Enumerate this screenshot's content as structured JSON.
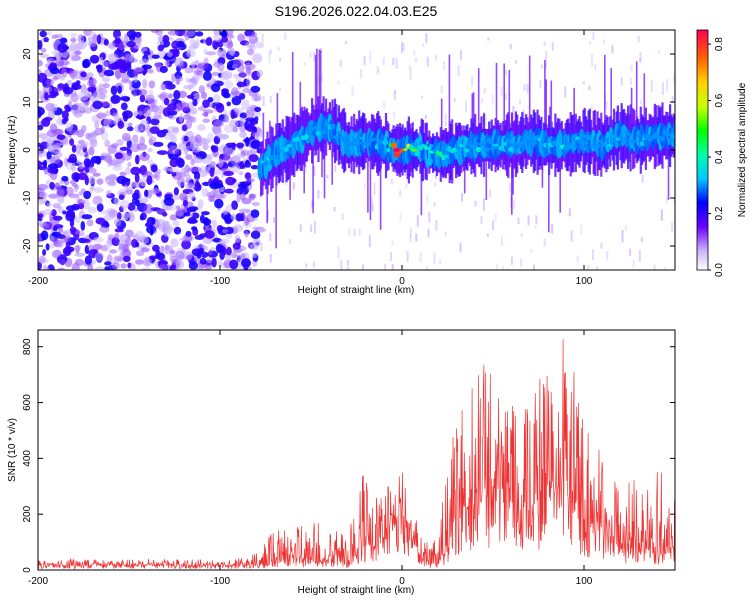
{
  "figure": {
    "title": "S196.2026.022.04.03.E25"
  },
  "colors": {
    "snr_line": "#ee3333",
    "axis": "#000000"
  },
  "chart_data": [
    {
      "type": "heatmap",
      "title": "",
      "xlabel": "Height of straight line (km)",
      "ylabel": "Frequency (Hz)",
      "xlim": [
        -200,
        150
      ],
      "ylim": [
        -25,
        25
      ],
      "xticks": [
        -200,
        -100,
        0,
        100
      ],
      "xtick_labels": [
        "-200",
        "-100",
        "0",
        "100"
      ],
      "yticks": [
        -20,
        -10,
        0,
        10,
        20
      ],
      "ytick_labels": [
        "-20",
        "-10",
        "0",
        "10",
        "20"
      ],
      "colorbar": {
        "label": "Normalized spectral amplitude",
        "range": [
          0,
          0.85
        ],
        "ticks": [
          0.0,
          0.2,
          0.4,
          0.6,
          0.8
        ],
        "tick_labels": [
          "0.0",
          "0.2",
          "0.4",
          "0.6",
          "0.8"
        ],
        "colormap": "rainbow"
      },
      "description_values": {
        "noise_region_x": [
          -200,
          -78
        ],
        "signal_start_x": -78,
        "ridge_points": [
          {
            "x": -78,
            "f": -4,
            "amp": 0.45
          },
          {
            "x": -70,
            "f": -1,
            "amp": 0.3
          },
          {
            "x": -60,
            "f": 1,
            "amp": 0.35
          },
          {
            "x": -50,
            "f": 4,
            "amp": 0.35
          },
          {
            "x": -40,
            "f": 5,
            "amp": 0.3
          },
          {
            "x": -30,
            "f": 1,
            "amp": 0.25
          },
          {
            "x": -20,
            "f": 2,
            "amp": 0.35
          },
          {
            "x": -10,
            "f": 1,
            "amp": 0.3
          },
          {
            "x": -3,
            "f": 0,
            "amp": 0.85
          },
          {
            "x": 10,
            "f": 0,
            "amp": 0.4
          },
          {
            "x": 20,
            "f": -1,
            "amp": 0.45
          },
          {
            "x": 30,
            "f": 0,
            "amp": 0.35
          },
          {
            "x": 40,
            "f": 1,
            "amp": 0.4
          },
          {
            "x": 50,
            "f": 1,
            "amp": 0.35
          },
          {
            "x": 60,
            "f": 1,
            "amp": 0.35
          },
          {
            "x": 70,
            "f": 2,
            "amp": 0.3
          },
          {
            "x": 80,
            "f": 1,
            "amp": 0.4
          },
          {
            "x": 90,
            "f": 1,
            "amp": 0.35
          },
          {
            "x": 100,
            "f": 2,
            "amp": 0.3
          },
          {
            "x": 110,
            "f": 1,
            "amp": 0.3
          },
          {
            "x": 120,
            "f": 3,
            "amp": 0.35
          },
          {
            "x": 130,
            "f": 2,
            "amp": 0.3
          },
          {
            "x": 140,
            "f": 3,
            "amp": 0.3
          },
          {
            "x": 150,
            "f": 3,
            "amp": 0.3
          }
        ]
      }
    },
    {
      "type": "line",
      "title": "",
      "xlabel": "Height of straight line (km)",
      "ylabel": "SNR (10 * v/v)",
      "xlim": [
        -200,
        150
      ],
      "ylim": [
        0,
        860
      ],
      "xticks": [
        -200,
        -100,
        0,
        100
      ],
      "xtick_labels": [
        "-200",
        "-100",
        "0",
        "100"
      ],
      "yticks": [
        0,
        200,
        400,
        600,
        800
      ],
      "ytick_labels": [
        "0",
        "200",
        "400",
        "600",
        "800"
      ],
      "series": [
        {
          "name": "SNR",
          "color": "#ee3333",
          "envelope": {
            "x": [
              -200,
              -180,
              -160,
              -140,
              -120,
              -100,
              -85,
              -78,
              -70,
              -65,
              -60,
              -55,
              -50,
              -45,
              -40,
              -35,
              -30,
              -25,
              -20,
              -15,
              -10,
              -5,
              0,
              5,
              10,
              15,
              20,
              25,
              30,
              35,
              40,
              45,
              50,
              55,
              60,
              65,
              70,
              75,
              80,
              85,
              90,
              95,
              100,
              105,
              110,
              115,
              120,
              125,
              130,
              135,
              140,
              145,
              150
            ],
            "base": [
              15,
              15,
              15,
              15,
              15,
              15,
              15,
              20,
              30,
              40,
              45,
              30,
              35,
              40,
              30,
              40,
              20,
              60,
              90,
              70,
              100,
              150,
              160,
              110,
              40,
              20,
              20,
              80,
              150,
              180,
              220,
              250,
              240,
              220,
              200,
              170,
              180,
              220,
              240,
              230,
              260,
              200,
              150,
              140,
              120,
              100,
              60,
              70,
              80,
              70,
              60,
              60,
              80
            ],
            "peak": [
              35,
              40,
              35,
              40,
              38,
              40,
              45,
              70,
              160,
              200,
              130,
              180,
              160,
              200,
              150,
              140,
              120,
              310,
              380,
              260,
              340,
              280,
              360,
              250,
              130,
              90,
              120,
              480,
              560,
              660,
              700,
              740,
              720,
              640,
              600,
              560,
              640,
              720,
              700,
              760,
              860,
              700,
              520,
              460,
              420,
              380,
              260,
              350,
              330,
              360,
              400,
              440,
              480
            ]
          }
        }
      ]
    }
  ]
}
